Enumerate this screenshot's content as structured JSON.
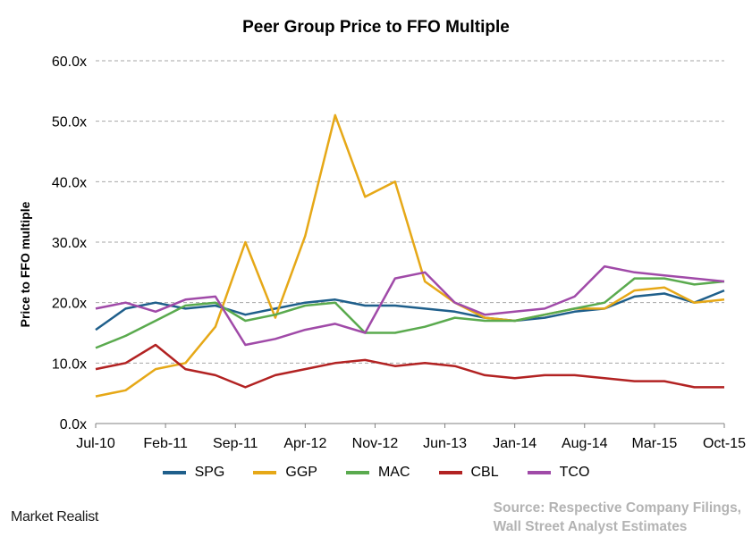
{
  "title": "Peer Group Price to FFO Multiple",
  "brand": "Market Realist",
  "source_lines": [
    "Source: Respective Company Filings,",
    "Wall Street Analyst Estimates"
  ],
  "chart_data": {
    "type": "line",
    "title": "Peer Group Price to FFO Multiple",
    "xlabel": "",
    "ylabel": "Price to FFO multiple",
    "x": [
      "Jul-10",
      "Oct-10",
      "Jan-11",
      "Apr-11",
      "Jul-11",
      "Oct-11",
      "Jan-12",
      "Apr-12",
      "Jul-12",
      "Oct-12",
      "Jan-13",
      "Apr-13",
      "Jul-13",
      "Oct-13",
      "Jan-14",
      "Apr-14",
      "Jul-14",
      "Oct-14",
      "Jan-15",
      "Apr-15",
      "Jul-15",
      "Oct-15"
    ],
    "xticks": [
      "Jul-10",
      "Feb-11",
      "Sep-11",
      "Apr-12",
      "Nov-12",
      "Jun-13",
      "Jan-14",
      "Aug-14",
      "Mar-15",
      "Oct-15"
    ],
    "yticks": [
      "0.0x",
      "10.0x",
      "20.0x",
      "30.0x",
      "40.0x",
      "50.0x",
      "60.0x"
    ],
    "ylim": [
      0,
      60
    ],
    "grid": "horizontal dashed",
    "legend": "bottom",
    "series": [
      {
        "name": "SPG",
        "color": "#1f5f8b",
        "values": [
          15.5,
          19.0,
          20.0,
          19.0,
          19.5,
          18.0,
          19.0,
          20.0,
          20.5,
          19.5,
          19.5,
          19.0,
          18.5,
          17.5,
          17.0,
          17.5,
          18.5,
          19.0,
          21.0,
          21.5,
          20.0,
          22.0
        ]
      },
      {
        "name": "GGP",
        "color": "#e6a817",
        "values": [
          4.5,
          5.5,
          9.0,
          10.0,
          16.0,
          30.0,
          17.5,
          31.0,
          51.0,
          37.5,
          40.0,
          23.5,
          20.0,
          17.5,
          17.0,
          18.0,
          19.0,
          19.0,
          22.0,
          22.5,
          20.0,
          20.5
        ]
      },
      {
        "name": "MAC",
        "color": "#5aaa4e",
        "values": [
          12.5,
          14.5,
          17.0,
          19.5,
          20.0,
          17.0,
          18.0,
          19.5,
          20.0,
          15.0,
          15.0,
          16.0,
          17.5,
          17.0,
          17.0,
          18.0,
          19.0,
          20.0,
          24.0,
          24.0,
          23.0,
          23.5
        ]
      },
      {
        "name": "CBL",
        "color": "#b22222",
        "values": [
          9.0,
          10.0,
          13.0,
          9.0,
          8.0,
          6.0,
          8.0,
          9.0,
          10.0,
          10.5,
          9.5,
          10.0,
          9.5,
          8.0,
          7.5,
          8.0,
          8.0,
          7.5,
          7.0,
          7.0,
          6.0,
          6.0
        ]
      },
      {
        "name": "TCO",
        "color": "#a04aa8",
        "values": [
          19.0,
          20.0,
          18.5,
          20.5,
          21.0,
          13.0,
          14.0,
          15.5,
          16.5,
          15.0,
          24.0,
          25.0,
          20.0,
          18.0,
          18.5,
          19.0,
          21.0,
          26.0,
          25.0,
          24.5,
          24.0,
          23.5
        ]
      }
    ]
  }
}
